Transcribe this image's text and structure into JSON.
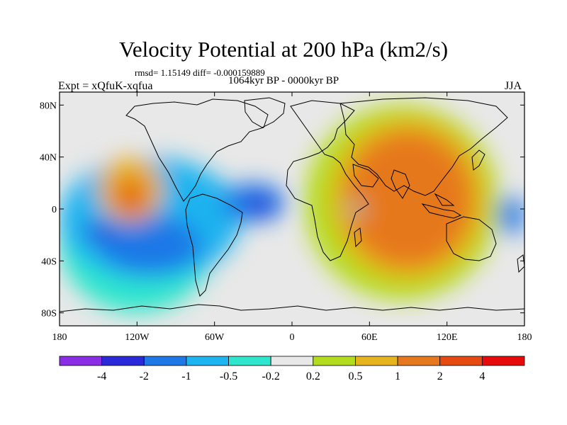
{
  "title": "Velocity Potential at 200 hPa (km2/s)",
  "stats_text": "rmsd= 1.15149 diff= -0.000159889",
  "period": "1064kyr BP - 0000kyr BP",
  "experiment": "Expt = xQfuK-xqfua",
  "season": "JJA",
  "lat_labels": [
    "80N",
    "40N",
    "0",
    "40S",
    "80S"
  ],
  "lat_values": [
    80,
    40,
    0,
    -40,
    -80
  ],
  "lon_labels": [
    "180",
    "120W",
    "60W",
    "0",
    "60E",
    "120E",
    "180"
  ],
  "lon_values": [
    -180,
    -120,
    -60,
    0,
    60,
    120,
    180
  ],
  "colorbar": {
    "colors": [
      "#8a2ee6",
      "#2a2ad8",
      "#1e78e6",
      "#1eb4f0",
      "#2ee6cc",
      "#e8e8e8",
      "#b4dc1e",
      "#e6b41e",
      "#e6781e",
      "#e64a10",
      "#e60a0a"
    ],
    "tick_labels": [
      "-4",
      "-2",
      "-1",
      "-0.5",
      "-0.2",
      "0.2",
      "0.5",
      "1",
      "2",
      "4"
    ]
  },
  "field": {
    "levels": [
      -4,
      -2,
      -1,
      -0.5,
      -0.2,
      0.2,
      0.5,
      1,
      2,
      4
    ],
    "bands": [
      {
        "level": -1,
        "lon": [
          -180,
          -60
        ],
        "lat": [
          -80,
          30
        ],
        "color": "#2ee6cc"
      },
      {
        "level": -0.5,
        "lon": [
          -180,
          -40
        ],
        "lat": [
          -55,
          40
        ],
        "color": "#1eb4f0"
      },
      {
        "level": -0.5,
        "lon": [
          -150,
          -70
        ],
        "lat": [
          -50,
          -5
        ],
        "color": "#1e78e6"
      },
      {
        "level": -2,
        "lon": [
          -160,
          -140
        ],
        "lat": [
          -25,
          -10
        ],
        "color": "#2a2ad8"
      },
      {
        "level": -1,
        "lon": [
          -55,
          -5
        ],
        "lat": [
          -10,
          20
        ],
        "color": "#1e78e6"
      },
      {
        "level": -2,
        "lon": [
          -35,
          -15
        ],
        "lat": [
          -5,
          10
        ],
        "color": "#2a2ad8"
      },
      {
        "level": 1,
        "lon": [
          -150,
          -100
        ],
        "lat": [
          -10,
          40
        ],
        "color": "#e6b41e"
      },
      {
        "level": 2,
        "lon": [
          -140,
          -110
        ],
        "lat": [
          -5,
          25
        ],
        "color": "#e6781e"
      },
      {
        "level": 4,
        "lon": [
          -130,
          -120
        ],
        "lat": [
          0,
          10
        ],
        "color": "#e64a10"
      },
      {
        "level": 0.5,
        "lon": [
          10,
          160
        ],
        "lat": [
          -70,
          80
        ],
        "color": "#b4dc1e"
      },
      {
        "level": 1,
        "lon": [
          30,
          150
        ],
        "lat": [
          -55,
          70
        ],
        "color": "#e6b41e"
      },
      {
        "level": 2,
        "lon": [
          40,
          140
        ],
        "lat": [
          -45,
          60
        ],
        "color": "#e6781e"
      },
      {
        "level": 0.2,
        "lon": [
          45,
          55
        ],
        "lat": [
          -5,
          5
        ],
        "color": "#2ee6cc"
      },
      {
        "level": -2,
        "lon": [
          160,
          180
        ],
        "lat": [
          -20,
          10
        ],
        "color": "#1e78e6"
      }
    ]
  }
}
